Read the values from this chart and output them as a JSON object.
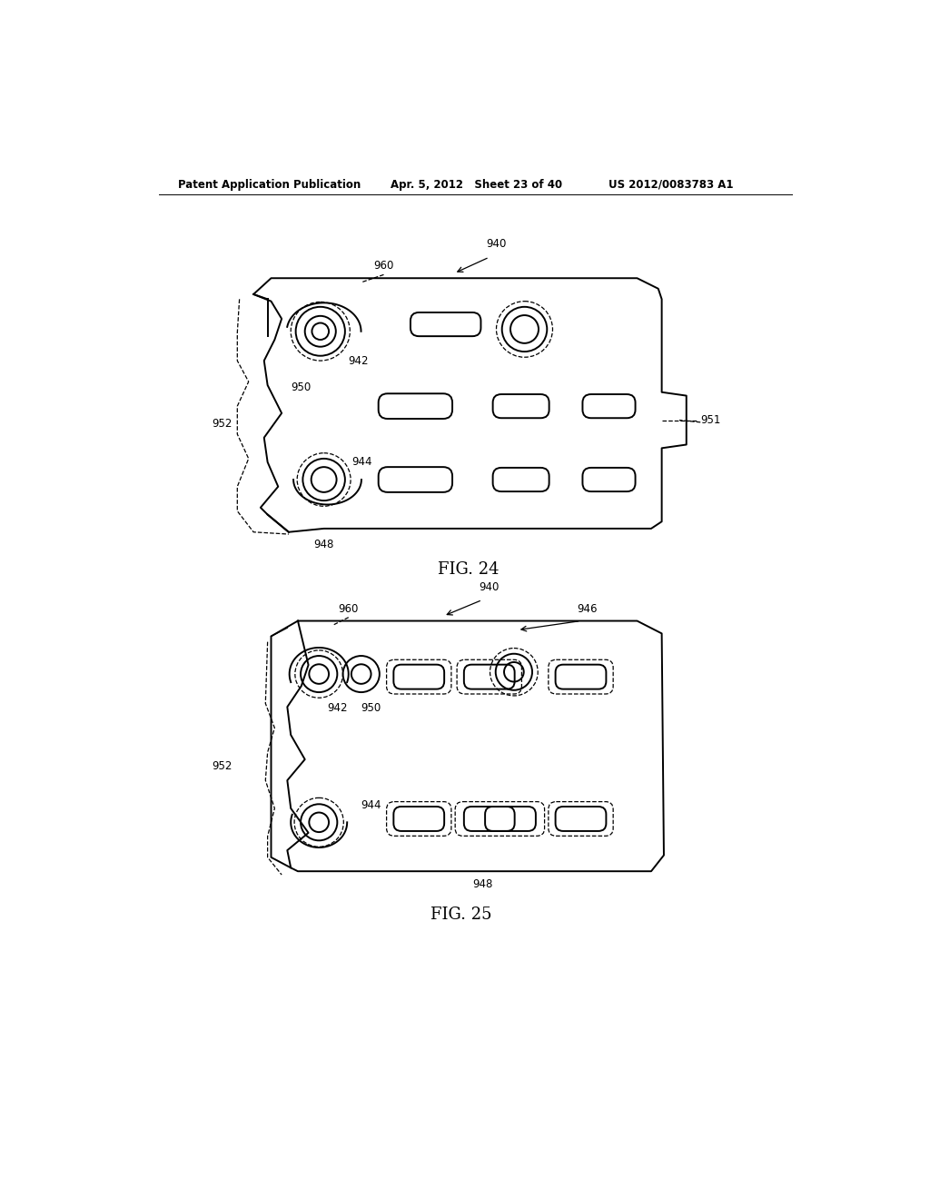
{
  "background_color": "#ffffff",
  "header_left": "Patent Application Publication",
  "header_center": "Apr. 5, 2012   Sheet 23 of 40",
  "header_right": "US 2012/0083783 A1",
  "fig24_label": "FIG. 24",
  "fig25_label": "FIG. 25",
  "line_color": "#000000"
}
